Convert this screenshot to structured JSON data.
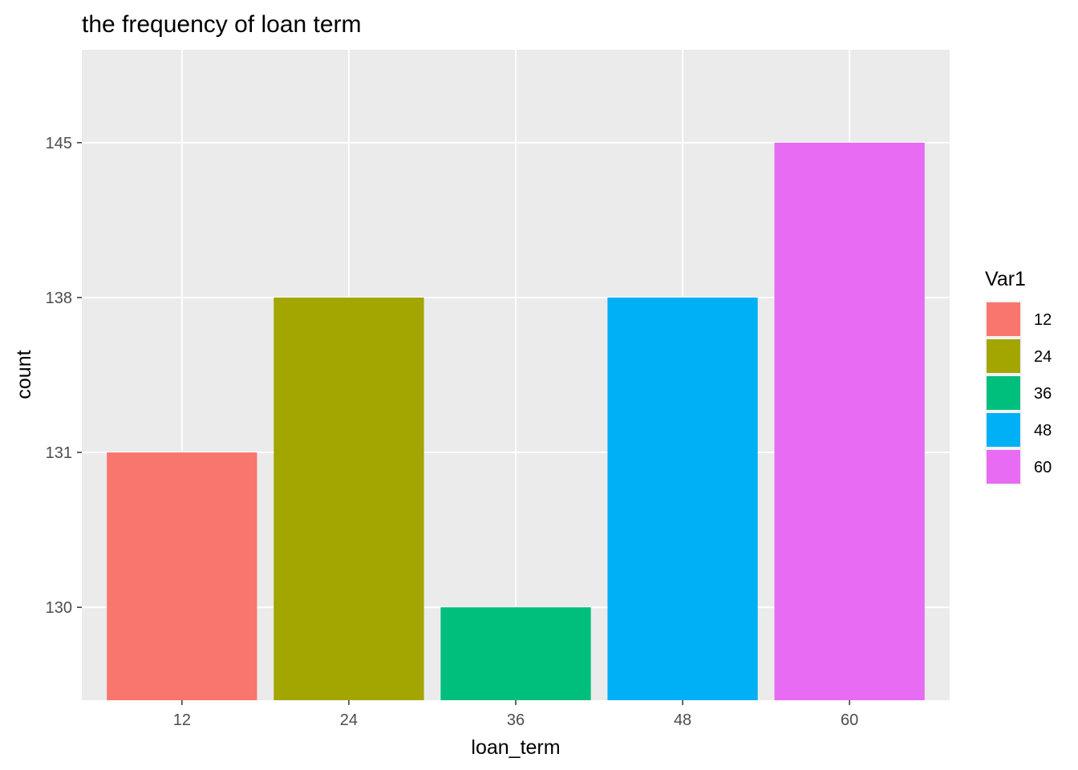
{
  "chart_data": {
    "type": "bar",
    "title": "the frequency of loan term",
    "xlabel": "loan_term",
    "ylabel": "count",
    "categories": [
      "12",
      "24",
      "36",
      "48",
      "60"
    ],
    "values": [
      131,
      138,
      130,
      138,
      145
    ],
    "y_tick_labels": [
      "130",
      "131",
      "138",
      "145"
    ],
    "y_scale": "categorical (ranked values, bars drawn from bottom of panel)",
    "legend": {
      "title": "Var1",
      "position": "right",
      "entries": [
        "12",
        "24",
        "36",
        "48",
        "60"
      ]
    },
    "colors": [
      "#F8766D",
      "#A3A500",
      "#00BF7D",
      "#00B0F6",
      "#E76BF3"
    ],
    "panel_background": "#EBEBEB",
    "grid": true
  }
}
